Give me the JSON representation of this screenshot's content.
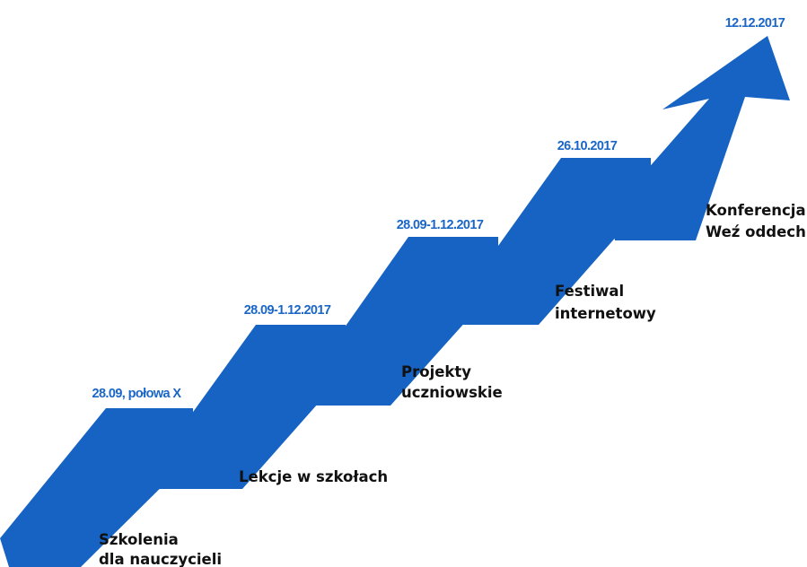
{
  "colors": {
    "ribbon_light": "#1663c4",
    "ribbon_dark": "#0d4a98",
    "date_text": "#1a66c7",
    "label_text": "#111111"
  },
  "milestones": [
    {
      "date": "28.09, połowa X",
      "label_lines": [
        "Szkolenia",
        "dla nauczycieli"
      ]
    },
    {
      "date": "28.09-1.12.2017",
      "label_lines": [
        "Lekcje w szkołach"
      ]
    },
    {
      "date": "28.09-1.12.2017",
      "label_lines": [
        "Projekty",
        "uczniowskie"
      ]
    },
    {
      "date": "26.10.2017",
      "label_lines": [
        "Festiwal",
        "internetowy"
      ]
    },
    {
      "date": "12.12.2017",
      "label_lines": [
        "Konferencja",
        "Weź oddech"
      ]
    }
  ]
}
